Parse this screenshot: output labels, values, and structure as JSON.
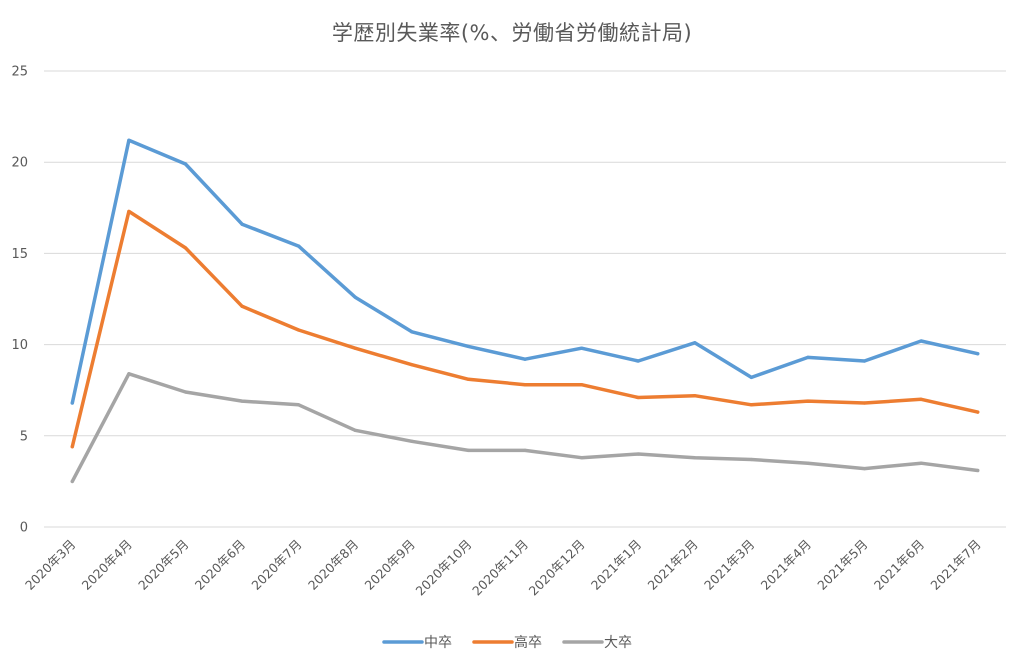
{
  "chart_data": {
    "type": "line",
    "title": "学歴別失業率(%、労働省労働統計局)",
    "xlabel": "",
    "ylabel": "",
    "categories": [
      "2020年3月",
      "2020年4月",
      "2020年5月",
      "2020年6月",
      "2020年7月",
      "2020年8月",
      "2020年9月",
      "2020年10月",
      "2020年11月",
      "2020年12月",
      "2021年1月",
      "2021年2月",
      "2021年3月",
      "2021年4月",
      "2021年5月",
      "2021年6月",
      "2021年7月"
    ],
    "ylim": [
      0,
      25
    ],
    "yticks": [
      0,
      5,
      10,
      15,
      20,
      25
    ],
    "grid": true,
    "legend_position": "bottom",
    "series": [
      {
        "name": "中卒",
        "color": "#5B9BD5",
        "values": [
          6.8,
          21.2,
          19.9,
          16.6,
          15.4,
          12.6,
          10.7,
          9.9,
          9.2,
          9.8,
          9.1,
          10.1,
          8.2,
          9.3,
          9.1,
          10.2,
          9.5
        ]
      },
      {
        "name": "高卒",
        "color": "#ED7D31",
        "values": [
          4.4,
          17.3,
          15.3,
          12.1,
          10.8,
          9.8,
          8.9,
          8.1,
          7.8,
          7.8,
          7.1,
          7.2,
          6.7,
          6.9,
          6.8,
          7.0,
          6.3
        ]
      },
      {
        "name": "大卒",
        "color": "#A5A5A5",
        "values": [
          2.5,
          8.4,
          7.4,
          6.9,
          6.7,
          5.3,
          4.7,
          4.2,
          4.2,
          3.8,
          4.0,
          3.8,
          3.7,
          3.5,
          3.2,
          3.5,
          3.1
        ]
      }
    ]
  }
}
